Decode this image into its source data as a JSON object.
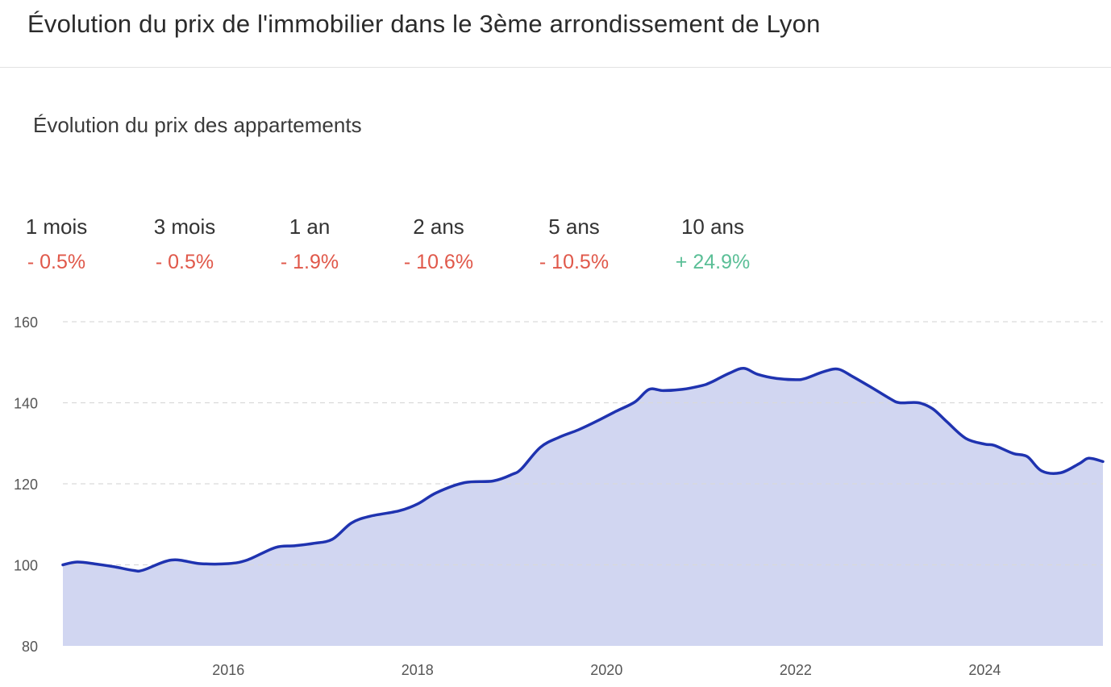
{
  "header": {
    "title": "Évolution du prix de l'immobilier dans le 3ème arrondissement de Lyon"
  },
  "section": {
    "title": "Évolution du prix des appartements"
  },
  "stats": [
    {
      "label": "1 mois",
      "value": "- 0.5%",
      "trend": "down"
    },
    {
      "label": "3 mois",
      "value": "- 0.5%",
      "trend": "down"
    },
    {
      "label": "1 an",
      "value": "- 1.9%",
      "trend": "down"
    },
    {
      "label": "2 ans",
      "value": "- 10.6%",
      "trend": "down"
    },
    {
      "label": "5 ans",
      "value": "- 10.5%",
      "trend": "down"
    },
    {
      "label": "10 ans",
      "value": "+ 24.9%",
      "trend": "up"
    }
  ],
  "colors": {
    "negative": "#e0584a",
    "positive": "#5bbf97",
    "line": "#1f33b0",
    "area": "#d1d6f1",
    "grid": "#d9d9d9",
    "tick_text": "#555555"
  },
  "chart_data": {
    "type": "area",
    "title": "",
    "xlabel": "",
    "ylabel": "",
    "ylim": [
      80,
      160
    ],
    "yticks": [
      80,
      100,
      120,
      140,
      160
    ],
    "xlim": [
      2014.25,
      2025.25
    ],
    "xticks": [
      2016,
      2018,
      2020,
      2022,
      2024
    ],
    "grid": "horizontal-dashed",
    "series": [
      {
        "x": [
          2014.25,
          2014.4,
          2014.6,
          2014.8,
          2015.0,
          2015.1,
          2015.4,
          2015.7,
          2016.0,
          2016.2,
          2016.5,
          2016.7,
          2016.9,
          2017.1,
          2017.3,
          2017.5,
          2017.8,
          2018.0,
          2018.2,
          2018.5,
          2018.8,
          2019.0,
          2019.1,
          2019.3,
          2019.5,
          2019.7,
          2019.9,
          2020.1,
          2020.3,
          2020.45,
          2020.6,
          2020.8,
          2021.0,
          2021.1,
          2021.3,
          2021.45,
          2021.6,
          2021.8,
          2022.0,
          2022.1,
          2022.3,
          2022.45,
          2022.6,
          2022.8,
          2023.0,
          2023.1,
          2023.3,
          2023.45,
          2023.6,
          2023.8,
          2024.0,
          2024.1,
          2024.3,
          2024.45,
          2024.6,
          2024.8,
          2025.0,
          2025.1,
          2025.25
        ],
        "values": [
          100,
          100.7,
          100.2,
          99.5,
          98.6,
          98.7,
          101.2,
          100.3,
          100.3,
          101.2,
          104.3,
          104.7,
          105.3,
          106.3,
          110.3,
          112.0,
          113.3,
          115.0,
          117.8,
          120.3,
          120.7,
          122.3,
          123.7,
          129.0,
          131.5,
          133.3,
          135.5,
          137.9,
          140.2,
          143.3,
          143.0,
          143.3,
          144.2,
          145.0,
          147.3,
          148.5,
          147.0,
          146.0,
          145.7,
          146.0,
          147.7,
          148.3,
          146.5,
          143.8,
          141.0,
          140.0,
          140.0,
          138.5,
          135.3,
          131.2,
          129.8,
          129.5,
          127.5,
          126.7,
          123.2,
          122.7,
          125.0,
          126.3,
          125.5
        ]
      }
    ]
  }
}
